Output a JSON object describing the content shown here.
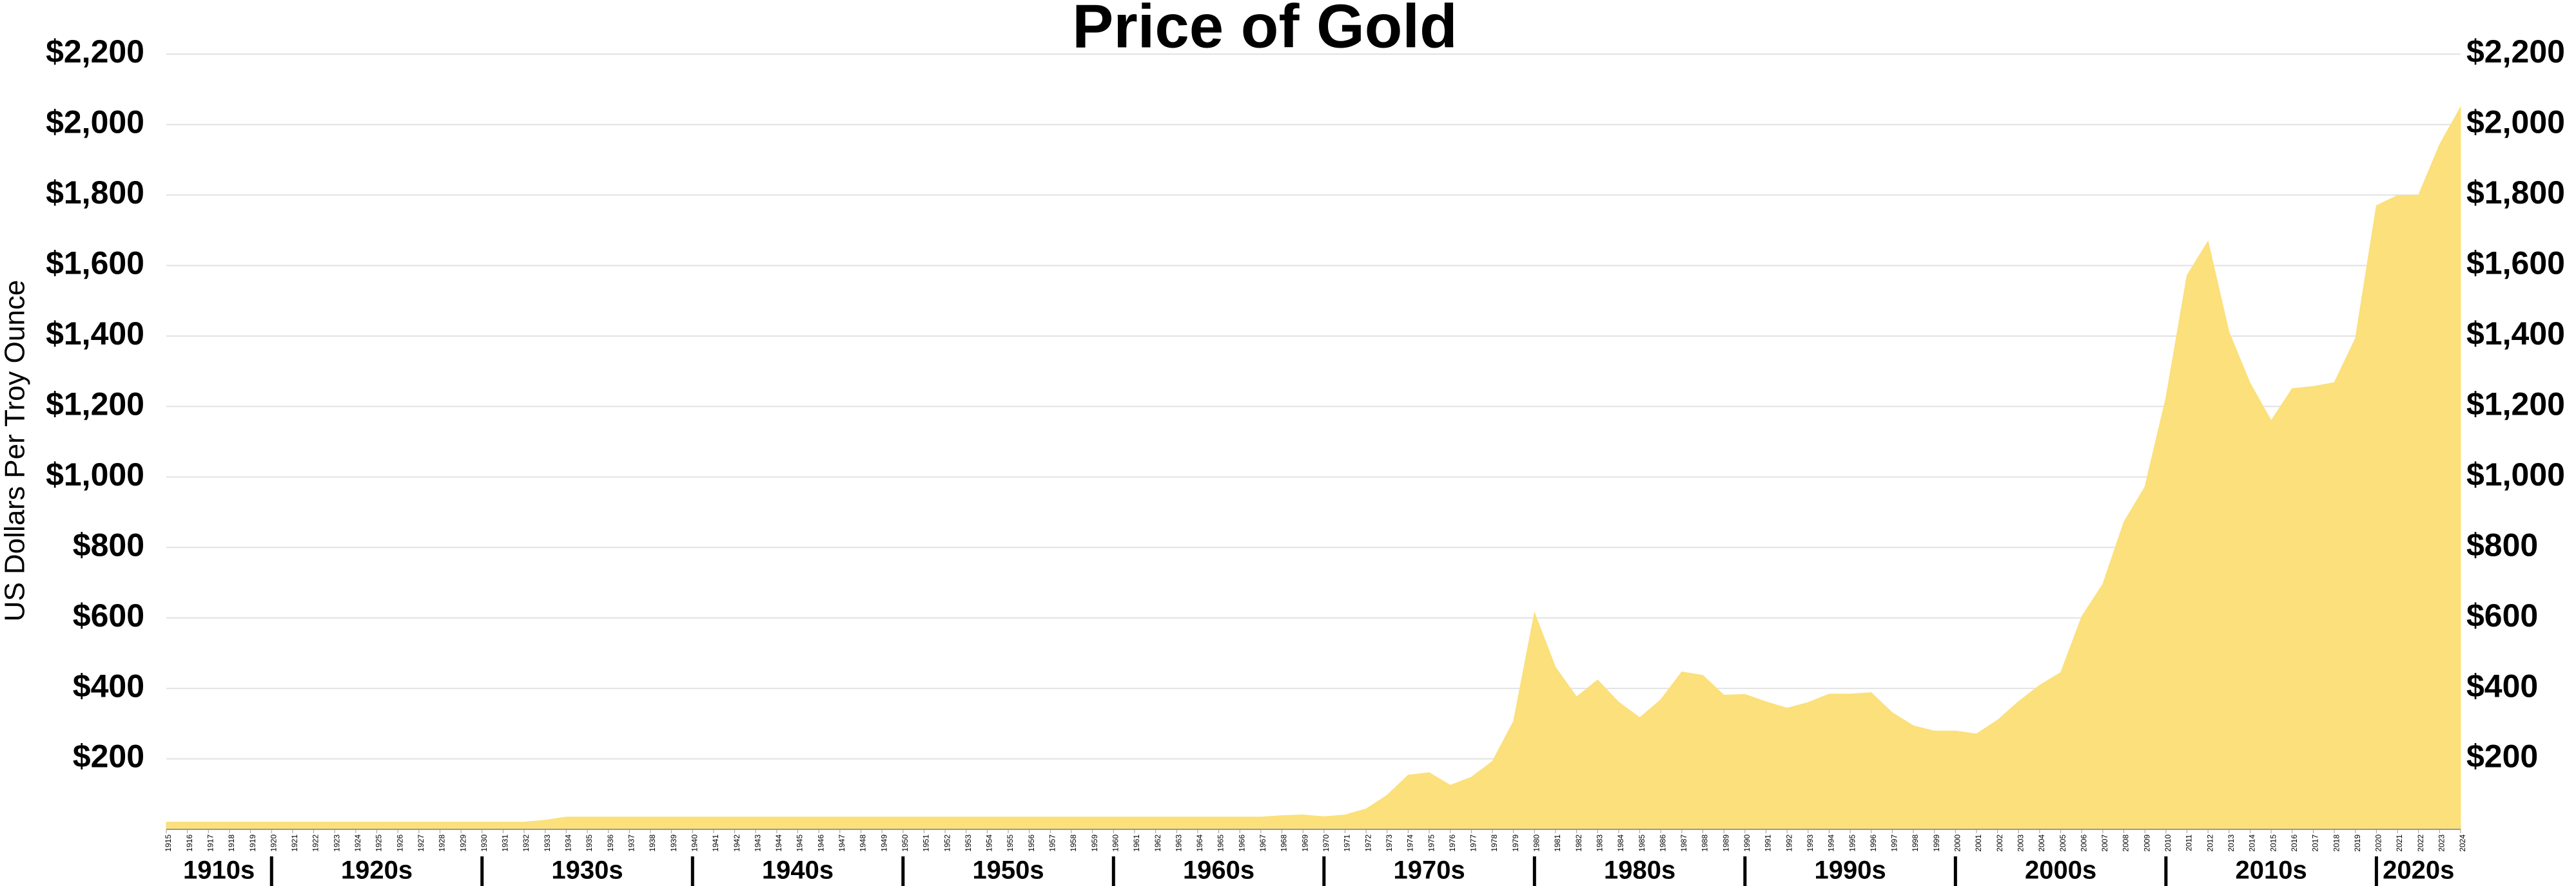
{
  "chart_data": {
    "type": "area",
    "title": "Price of Gold",
    "y_label": "US Dollars Per Troy Ounce",
    "color": "#fbe07b",
    "grid": true,
    "xlim": [
      1915,
      2024
    ],
    "ylim": [
      0,
      2200
    ],
    "yticks": [
      {
        "value": 200,
        "label": "$200"
      },
      {
        "value": 400,
        "label": "$400"
      },
      {
        "value": 600,
        "label": "$600"
      },
      {
        "value": 800,
        "label": "$800"
      },
      {
        "value": 1000,
        "label": "$1,000"
      },
      {
        "value": 1200,
        "label": "$1,200"
      },
      {
        "value": 1400,
        "label": "$1,400"
      },
      {
        "value": 1600,
        "label": "$1,600"
      },
      {
        "value": 1800,
        "label": "$1,800"
      },
      {
        "value": 2000,
        "label": "$2,000"
      },
      {
        "value": 2200,
        "label": "$2,200"
      }
    ],
    "xticks": [
      1915,
      1916,
      1917,
      1918,
      1919,
      1920,
      1921,
      1922,
      1923,
      1924,
      1925,
      1926,
      1927,
      1928,
      1929,
      1930,
      1931,
      1932,
      1933,
      1934,
      1935,
      1936,
      1937,
      1938,
      1939,
      1940,
      1941,
      1942,
      1943,
      1944,
      1945,
      1946,
      1947,
      1948,
      1949,
      1950,
      1951,
      1952,
      1953,
      1954,
      1955,
      1956,
      1957,
      1958,
      1959,
      1960,
      1961,
      1962,
      1963,
      1964,
      1965,
      1966,
      1967,
      1968,
      1969,
      1970,
      1971,
      1972,
      1973,
      1974,
      1975,
      1976,
      1977,
      1978,
      1979,
      1980,
      1981,
      1982,
      1983,
      1984,
      1985,
      1986,
      1987,
      1988,
      1989,
      1990,
      1991,
      1992,
      1993,
      1994,
      1995,
      1996,
      1997,
      1998,
      1999,
      2000,
      2001,
      2002,
      2003,
      2004,
      2005,
      2006,
      2007,
      2008,
      2009,
      2010,
      2011,
      2012,
      2013,
      2014,
      2015,
      2016,
      2017,
      2018,
      2019,
      2020,
      2021,
      2022,
      2023,
      2024
    ],
    "decade_ticks": [
      {
        "value": 1910,
        "label": "1910s"
      },
      {
        "value": 1920,
        "label": "1920s"
      },
      {
        "value": 1930,
        "label": "1930s"
      },
      {
        "value": 1940,
        "label": "1940s"
      },
      {
        "value": 1950,
        "label": "1950s"
      },
      {
        "value": 1960,
        "label": "1960s"
      },
      {
        "value": 1970,
        "label": "1970s"
      },
      {
        "value": 1980,
        "label": "1980s"
      },
      {
        "value": 1990,
        "label": "1990s"
      },
      {
        "value": 2000,
        "label": "2000s"
      },
      {
        "value": 2010,
        "label": "2010s"
      },
      {
        "value": 2020,
        "label": "2020s"
      }
    ],
    "x": [
      1915,
      1916,
      1917,
      1918,
      1919,
      1920,
      1921,
      1922,
      1923,
      1924,
      1925,
      1926,
      1927,
      1928,
      1929,
      1930,
      1931,
      1932,
      1933,
      1934,
      1935,
      1936,
      1937,
      1938,
      1939,
      1940,
      1941,
      1942,
      1943,
      1944,
      1945,
      1946,
      1947,
      1948,
      1949,
      1950,
      1951,
      1952,
      1953,
      1954,
      1955,
      1956,
      1957,
      1958,
      1959,
      1960,
      1961,
      1962,
      1963,
      1964,
      1965,
      1966,
      1967,
      1968,
      1969,
      1970,
      1971,
      1972,
      1973,
      1974,
      1975,
      1976,
      1977,
      1978,
      1979,
      1980,
      1981,
      1982,
      1983,
      1984,
      1985,
      1986,
      1987,
      1988,
      1989,
      1990,
      1991,
      1992,
      1993,
      1994,
      1995,
      1996,
      1997,
      1998,
      1999,
      2000,
      2001,
      2002,
      2003,
      2004,
      2005,
      2006,
      2007,
      2008,
      2009,
      2010,
      2011,
      2012,
      2013,
      2014,
      2015,
      2016,
      2017,
      2018,
      2019,
      2020,
      2021,
      2022,
      2023,
      2024
    ],
    "values": [
      20.67,
      20.67,
      20.67,
      20.67,
      20.67,
      20.67,
      20.67,
      20.67,
      20.67,
      20.67,
      20.67,
      20.67,
      20.67,
      20.67,
      20.67,
      20.67,
      20.67,
      20.67,
      26,
      35,
      35,
      35,
      35,
      35,
      35,
      35,
      35,
      35,
      35,
      35,
      35,
      35,
      35,
      35,
      35,
      35,
      35,
      35,
      35,
      35,
      35,
      35,
      35,
      35,
      35,
      35,
      35,
      35,
      35,
      35,
      35,
      35,
      35,
      39,
      41,
      36,
      41,
      58,
      97,
      154,
      161,
      125,
      148,
      193,
      306,
      615,
      460,
      376,
      424,
      361,
      317,
      368,
      447,
      437,
      381,
      383,
      362,
      344,
      360,
      384,
      384,
      388,
      331,
      294,
      279,
      279,
      271,
      310,
      363,
      409,
      445,
      604,
      696,
      872,
      972,
      1225,
      1572,
      1669,
      1411,
      1266,
      1160,
      1251,
      1257,
      1268,
      1393,
      1770,
      1799,
      1800,
      1943,
      2050
    ]
  }
}
